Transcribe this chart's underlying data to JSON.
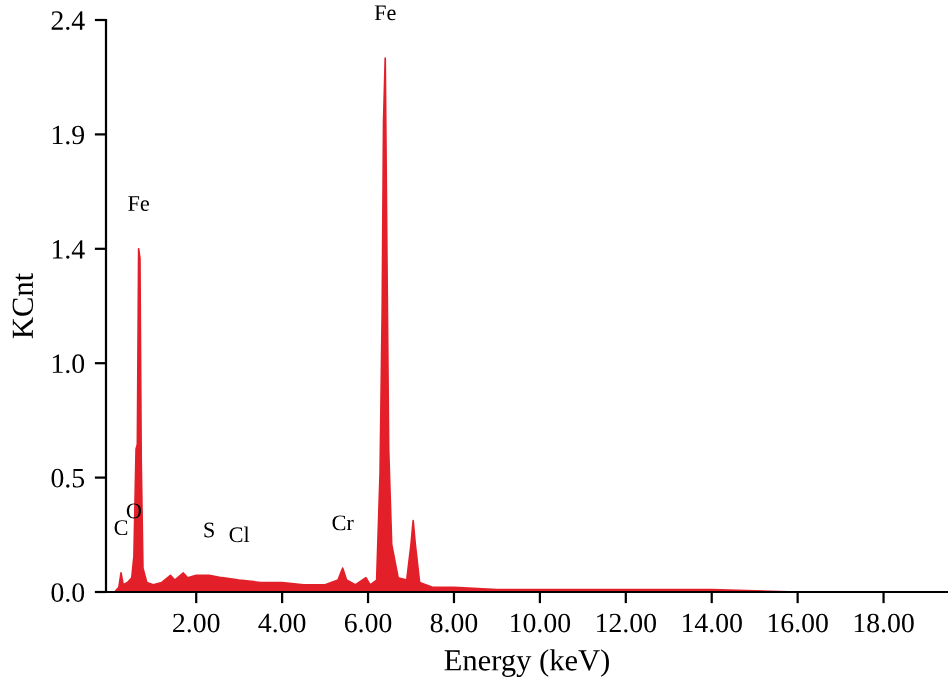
{
  "chart_data": {
    "type": "area",
    "xlabel": "Energy (keV)",
    "ylabel": "KCnt",
    "series": [
      {
        "color": "#e3202a",
        "x": [
          0.1,
          0.2,
          0.25,
          0.3,
          0.4,
          0.5,
          0.55,
          0.6,
          0.63,
          0.66,
          0.69,
          0.72,
          0.76,
          0.85,
          1.0,
          1.2,
          1.4,
          1.5,
          1.7,
          1.8,
          2.0,
          2.3,
          2.6,
          3.0,
          3.5,
          4.0,
          4.5,
          5.0,
          5.3,
          5.41,
          5.5,
          5.7,
          5.95,
          6.05,
          6.2,
          6.28,
          6.33,
          6.36,
          6.4,
          6.44,
          6.48,
          6.55,
          6.7,
          6.9,
          7.0,
          7.05,
          7.1,
          7.2,
          7.5,
          8.0,
          9.0,
          10.0,
          11.0,
          12.0,
          14.0,
          16.0,
          18.0,
          19.5
        ],
        "values": [
          0.0,
          0.02,
          0.08,
          0.03,
          0.04,
          0.06,
          0.15,
          0.6,
          0.62,
          1.44,
          1.4,
          0.55,
          0.1,
          0.04,
          0.03,
          0.04,
          0.07,
          0.05,
          0.08,
          0.06,
          0.07,
          0.07,
          0.06,
          0.05,
          0.04,
          0.04,
          0.03,
          0.03,
          0.05,
          0.1,
          0.05,
          0.03,
          0.06,
          0.03,
          0.05,
          0.5,
          1.2,
          1.97,
          2.24,
          1.4,
          0.6,
          0.2,
          0.06,
          0.05,
          0.2,
          0.3,
          0.2,
          0.04,
          0.02,
          0.02,
          0.01,
          0.01,
          0.01,
          0.01,
          0.01,
          0.0,
          0.0,
          0.0
        ]
      }
    ],
    "xlim": [
      -0.1,
      19.5
    ],
    "xticks": [
      {
        "value": 2,
        "label": "2.00"
      },
      {
        "value": 4,
        "label": "4.00"
      },
      {
        "value": 6,
        "label": "6.00"
      },
      {
        "value": 8,
        "label": "8.00"
      },
      {
        "value": 10,
        "label": "10.00"
      },
      {
        "value": 12,
        "label": "12.00"
      },
      {
        "value": 14,
        "label": "14.00"
      },
      {
        "value": 16,
        "label": "16.00"
      },
      {
        "value": 18,
        "label": "18.00"
      }
    ],
    "ylim": [
      0,
      2.4
    ],
    "yticks": [
      {
        "value": 0,
        "label": "0.0"
      },
      {
        "value": 0.48,
        "label": "0.5"
      },
      {
        "value": 0.96,
        "label": "1.0"
      },
      {
        "value": 1.44,
        "label": "1.4"
      },
      {
        "value": 1.92,
        "label": "1.9"
      },
      {
        "value": 2.4,
        "label": "2.4"
      }
    ],
    "annotations": [
      {
        "text": "Fe",
        "x": 0.66,
        "y": 1.44
      },
      {
        "text": "Fe",
        "x": 6.4,
        "y": 2.24
      },
      {
        "text": "C",
        "x": 0.25,
        "y": 0.08
      },
      {
        "text": "O",
        "x": 0.55,
        "y": 0.15
      },
      {
        "text": "S",
        "x": 2.3,
        "y": 0.07
      },
      {
        "text": "Cl",
        "x": 3.0,
        "y": 0.05
      },
      {
        "text": "Cr",
        "x": 5.41,
        "y": 0.1
      }
    ],
    "grid": false,
    "legend": false
  }
}
